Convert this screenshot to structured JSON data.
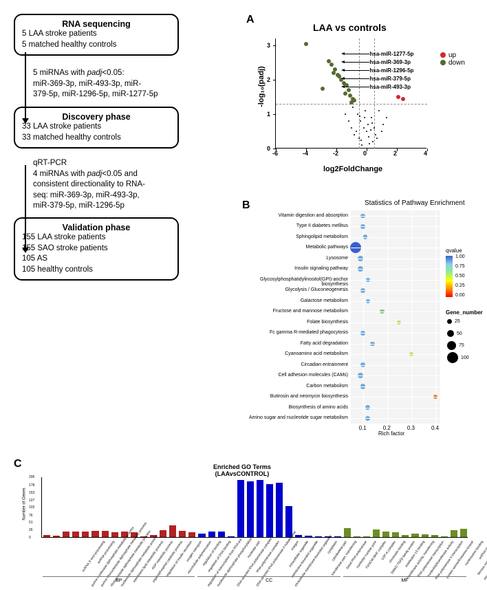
{
  "flowchart": {
    "box1": {
      "title": "RNA sequencing",
      "line1": "5 LAA stroke patients",
      "line2": "5 matched healthy controls"
    },
    "arrow1": {
      "line1": "5 miRNAs with",
      "padj": "padj",
      "lt": "<0.05:",
      "line2": "miR-369-3p, miR-493-3p, miR-",
      "line3": "379-5p, miR-1296-5p, miR-1277-5p"
    },
    "box2": {
      "title": "Discovery phase",
      "line1": "33 LAA stroke patients",
      "line2": "33 matched healthy controls"
    },
    "arrow2": {
      "line1": "qRT-PCR",
      "line2": "4 miRNAs with",
      "padj": "padj",
      "lt": "<0.05 and",
      "line3": "consistent directionality to RNA-",
      "line4": "seq: miR-369-3p, miR-493-3p,",
      "line5": "miR-379-5p, miR-1296-5p"
    },
    "box3": {
      "title": "Validation phase",
      "line1": "155 LAA stroke patients",
      "line2": "155 SAO stroke patients",
      "line3": "105 AS",
      "line4": "105 healthy controls"
    }
  },
  "panelA": {
    "label": "A",
    "title": "LAA vs controls",
    "ylabel": "-log₁₀(padj)",
    "xlabel": "log2FoldChange",
    "xlim": [
      -6,
      4
    ],
    "ylim": [
      0,
      3.2
    ],
    "xticks": [
      -6,
      -4,
      -2,
      0,
      2,
      4
    ],
    "yticks": [
      0,
      1,
      2,
      3
    ],
    "dashed_y": 1.3,
    "dashed_x": [
      -0.5,
      0.5
    ],
    "legend": [
      {
        "label": "up",
        "color": "#d62728"
      },
      {
        "label": "down",
        "color": "#556b2f"
      }
    ],
    "annotations": [
      "hsa-miR-1277-5p",
      "hsa-miR-369-3p",
      "hsa-miR-1296-5p",
      "hsa-miR-379-5p",
      "hsa-miR-493-3p"
    ],
    "down_points": [
      {
        "x": -4.0,
        "y": 3.05
      },
      {
        "x": -2.5,
        "y": 2.55
      },
      {
        "x": -2.3,
        "y": 2.45
      },
      {
        "x": -2.1,
        "y": 2.3
      },
      {
        "x": -2.2,
        "y": 2.2
      },
      {
        "x": -1.9,
        "y": 2.15
      },
      {
        "x": -1.8,
        "y": 2.1
      },
      {
        "x": -1.7,
        "y": 2.0
      },
      {
        "x": -1.5,
        "y": 1.9
      },
      {
        "x": -1.3,
        "y": 1.85
      },
      {
        "x": -2.9,
        "y": 1.75
      },
      {
        "x": -1.2,
        "y": 1.7
      },
      {
        "x": -1.4,
        "y": 1.6
      },
      {
        "x": -1.1,
        "y": 1.55
      },
      {
        "x": -0.9,
        "y": 1.45
      },
      {
        "x": -0.8,
        "y": 1.4
      },
      {
        "x": -1.0,
        "y": 1.35
      }
    ],
    "up_points": [
      {
        "x": 2.1,
        "y": 1.5
      },
      {
        "x": 2.4,
        "y": 1.45
      }
    ],
    "colors": {
      "up": "#d62728",
      "down": "#556b2f",
      "ns": "#000000",
      "dashed": "#888888"
    }
  },
  "panelB": {
    "label": "B",
    "title": "Statistics of Pathway Enrichment",
    "xlabel": "Rich factor",
    "xticks": [
      0.1,
      0.2,
      0.3,
      0.4
    ],
    "qvalue_label": "qvalue",
    "qvalue_ticks": [
      "1.00",
      "0.75",
      "0.50",
      "0.25",
      "0.00"
    ],
    "gene_label": "Gene_number",
    "gene_sizes": [
      25,
      50,
      75,
      100
    ],
    "pathways": [
      {
        "name": "Vitamin digestion and absorption",
        "rf": 0.1,
        "q": 0.85,
        "n": 20
      },
      {
        "name": "Type II diabetes mellitus",
        "rf": 0.1,
        "q": 0.85,
        "n": 22
      },
      {
        "name": "Sphingolipid metabolism",
        "rf": 0.11,
        "q": 0.85,
        "n": 22
      },
      {
        "name": "Metabolic pathways",
        "rf": 0.07,
        "q": 0.9,
        "n": 100
      },
      {
        "name": "Lysosome",
        "rf": 0.09,
        "q": 0.85,
        "n": 35
      },
      {
        "name": "Insulin signaling pathway",
        "rf": 0.09,
        "q": 0.85,
        "n": 35
      },
      {
        "name": "Glycosylphosphatidylinositol(GPI)-anchor biosynthesis",
        "rf": 0.12,
        "q": 0.8,
        "n": 18
      },
      {
        "name": "Glycolysis / Gluconeogenesis",
        "rf": 0.1,
        "q": 0.85,
        "n": 24
      },
      {
        "name": "Galactose metabolism",
        "rf": 0.12,
        "q": 0.8,
        "n": 18
      },
      {
        "name": "Fructose and mannose metabolism",
        "rf": 0.18,
        "q": 0.7,
        "n": 20
      },
      {
        "name": "Folate biosynthesis",
        "rf": 0.25,
        "q": 0.5,
        "n": 16
      },
      {
        "name": "Fc gamma R-mediated phagocytosis",
        "rf": 0.1,
        "q": 0.85,
        "n": 26
      },
      {
        "name": "Fatty acid degradation",
        "rf": 0.14,
        "q": 0.8,
        "n": 20
      },
      {
        "name": "Cyanoamino acid metabolism",
        "rf": 0.3,
        "q": 0.4,
        "n": 15
      },
      {
        "name": "Circadian entrainment",
        "rf": 0.1,
        "q": 0.85,
        "n": 28
      },
      {
        "name": "Cell adhesion molecules (CAMs)",
        "rf": 0.09,
        "q": 0.85,
        "n": 32
      },
      {
        "name": "Carbon metabolism",
        "rf": 0.1,
        "q": 0.85,
        "n": 30
      },
      {
        "name": "Butirosin and neomycin biosynthesis",
        "rf": 0.4,
        "q": 0.3,
        "n": 14
      },
      {
        "name": "Biosynthesis of amino acids",
        "rf": 0.12,
        "q": 0.8,
        "n": 26
      },
      {
        "name": "Amino sugar and nucleotide sugar metabolism",
        "rf": 0.12,
        "q": 0.8,
        "n": 22
      }
    ]
  },
  "panelC": {
    "label": "C",
    "title": "Enriched GO Terms\n(LAAvsCONTROL)",
    "ylabel": "Number of Genes",
    "yticks": [
      0,
      26,
      51,
      76,
      102,
      127,
      153,
      178,
      206
    ],
    "categories": [
      {
        "name": "BP",
        "color": "#b22222",
        "bars": [
          {
            "label": "ncRNA 3'-end processing",
            "val": 6
          },
          {
            "label": "snRNA processing",
            "val": 5
          },
          {
            "label": "purine nucleoside diphosphate metabolic process",
            "val": 18
          },
          {
            "label": "purine ribonucleoside diphosphate metabolic process",
            "val": 18
          },
          {
            "label": "ribonucleoside diphosphate metabolic process",
            "val": 18
          },
          {
            "label": "nucleoside diphosphate metabolic process",
            "val": 20
          },
          {
            "label": "membrane lipid metabolic process",
            "val": 22
          },
          {
            "label": "ADP metabolic process",
            "val": 16
          },
          {
            "label": "organophosphal catabolic process",
            "val": 18
          },
          {
            "label": "regulation of insulin secretion",
            "val": 16
          },
          {
            "label": "oxygen transport",
            "val": 3
          },
          {
            "label": "microtubule polymerization",
            "val": 8
          },
          {
            "label": "regulation of binding",
            "val": 24
          },
          {
            "label": "regulation of DNA binding",
            "val": 40
          },
          {
            "label": "regulation of transcription from RNA pol",
            "val": 20
          },
          {
            "label": "nucleoside diphosphate phosphorylation",
            "val": 16
          }
        ]
      },
      {
        "name": "CC",
        "color": "#0000cd",
        "bars": [
          {
            "label": "nucleolar part",
            "val": 12
          },
          {
            "label": "DNA-directed RNA polymerase complex",
            "val": 18
          },
          {
            "label": "RNA polymerase complex",
            "val": 18
          },
          {
            "label": "DNA-directed RNA polymerase II holoenzyme",
            "val": 3
          },
          {
            "label": "integrin",
            "val": 195
          },
          {
            "label": "intracellular organelle",
            "val": 190
          },
          {
            "label": "membrane-bounded organelle",
            "val": 195
          },
          {
            "label": "intracellular membrane-bounded organelle",
            "val": 180
          },
          {
            "label": "cytoplasm",
            "val": 185
          },
          {
            "label": "cytoskeletal part",
            "val": 105
          },
          {
            "label": "transferase part, transferring",
            "val": 6
          },
          {
            "label": "basal RNA polymerase",
            "val": 4
          },
          {
            "label": "nucleolar nuclear pore",
            "val": 3
          },
          {
            "label": "FANCM-MHF complex",
            "val": 2
          },
          {
            "label": "U3P-A complex",
            "val": 2
          }
        ]
      },
      {
        "name": "MF",
        "color": "#6b8e23",
        "bars": [
          {
            "label": "chromatin binding",
            "val": 30
          },
          {
            "label": "SMAD-TGFβ family protein",
            "val": 3
          },
          {
            "label": "interleukin-13 binding",
            "val": 2
          },
          {
            "label": "transferase activity, transferring",
            "val": 26
          },
          {
            "label": "RNA polymerase transcription",
            "val": 18
          },
          {
            "label": "nucleotidyltransferase activity",
            "val": 16
          },
          {
            "label": "RNA polymerase II transcription",
            "val": 6
          },
          {
            "label": "protein serine/threonine kinase",
            "val": 12
          },
          {
            "label": "nucleosome binding",
            "val": 10
          },
          {
            "label": "snRNA binding",
            "val": 6
          },
          {
            "label": "ferrous iron transmembrane",
            "val": 3
          },
          {
            "label": "structural constituent of cytoskel",
            "val": 24
          },
          {
            "label": "NAD+ ADP-ribosyltransferase",
            "val": 28
          }
        ]
      }
    ]
  }
}
